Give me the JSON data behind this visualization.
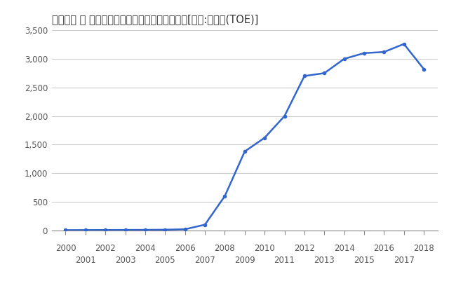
{
  "title": "スペイン － 太陽光発電量（石油換算トン）　　[単位:千トン(TOE)]",
  "years": [
    2000,
    2001,
    2002,
    2003,
    2004,
    2005,
    2006,
    2007,
    2008,
    2009,
    2010,
    2011,
    2012,
    2013,
    2014,
    2015,
    2016,
    2017,
    2018
  ],
  "values": [
    5,
    6,
    7,
    8,
    9,
    12,
    20,
    100,
    600,
    1380,
    1620,
    2000,
    2700,
    2750,
    3000,
    3100,
    3120,
    3260,
    2820
  ],
  "line_color": "#3366cc",
  "marker_color": "#3366cc",
  "background_color": "#ffffff",
  "grid_color": "#cccccc",
  "ylim": [
    0,
    3500
  ],
  "yticks": [
    0,
    500,
    1000,
    1500,
    2000,
    2500,
    3000,
    3500
  ],
  "xlim": [
    1999.3,
    2018.7
  ],
  "title_fontsize": 10.5,
  "tick_fontsize": 8.5,
  "title_color": "#333333",
  "tick_color": "#555555",
  "spine_color": "#888888"
}
